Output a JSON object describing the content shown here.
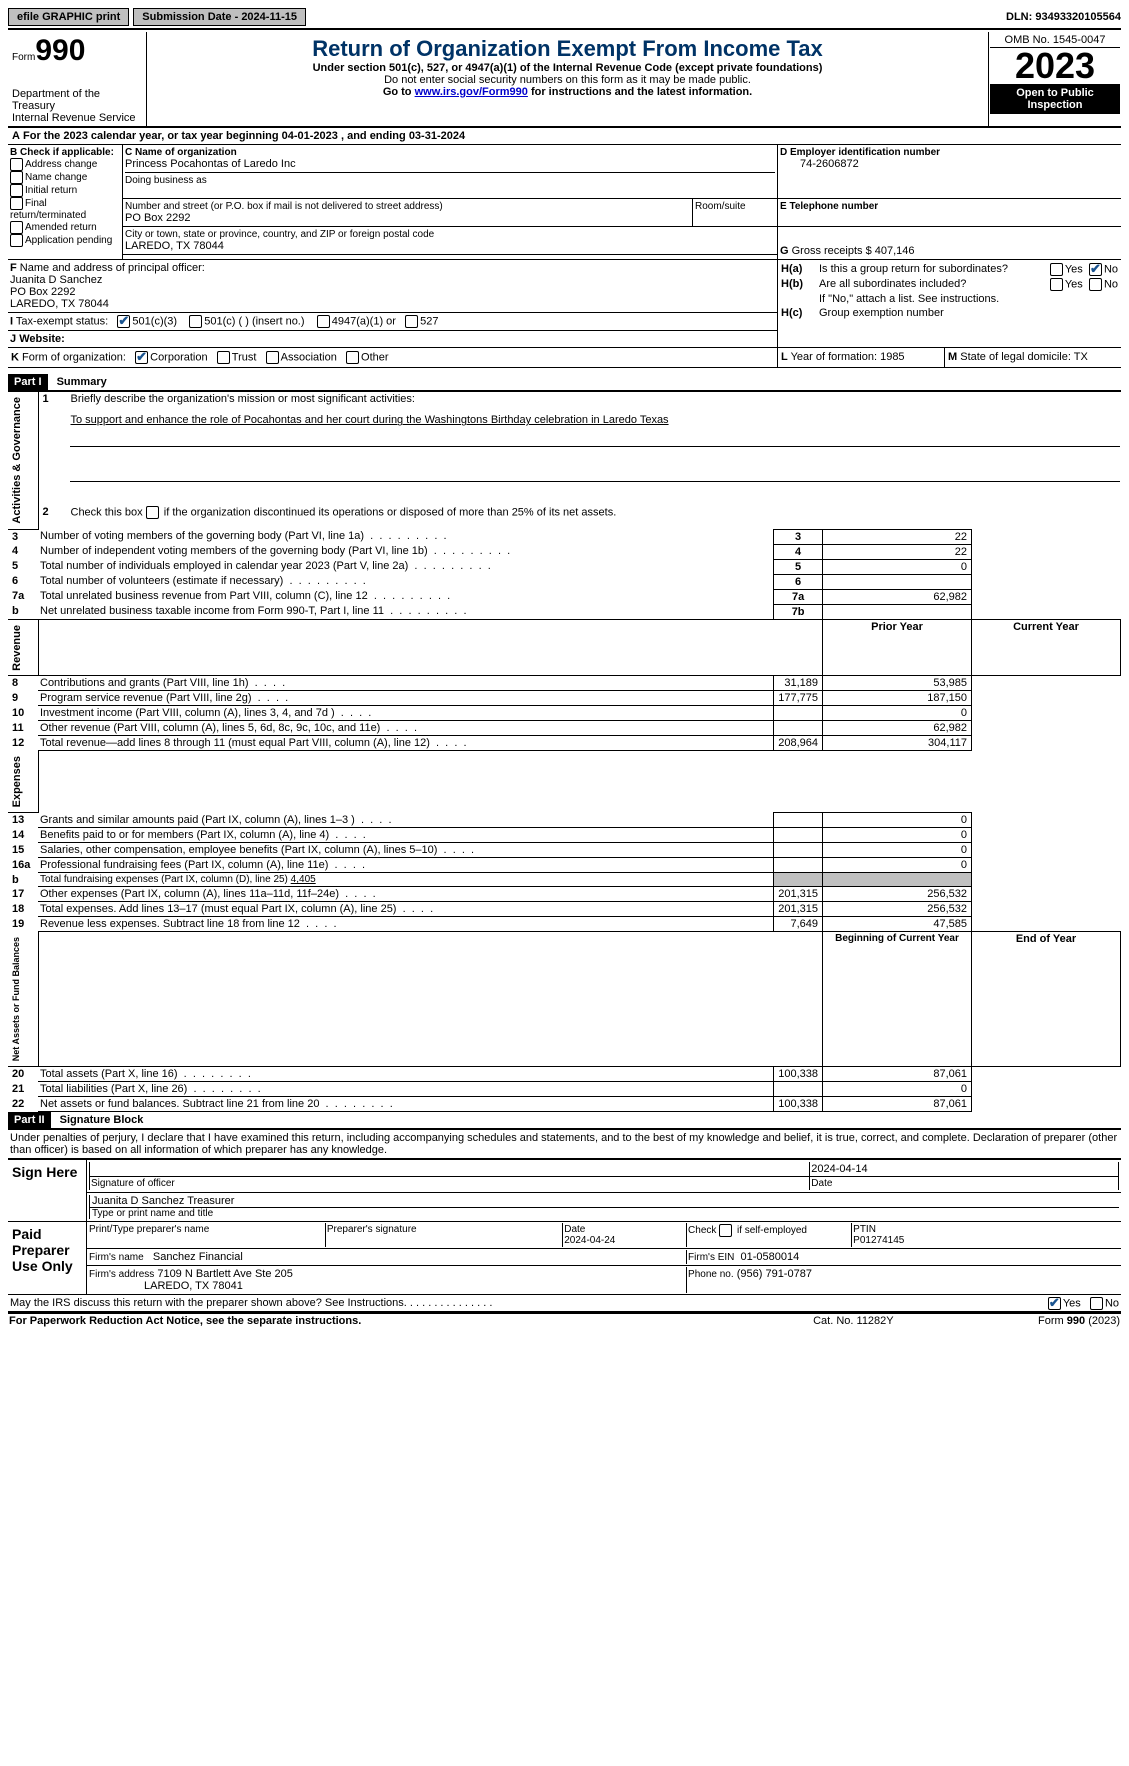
{
  "topbar": {
    "efile": "efile GRAPHIC print",
    "submission_label": "Submission Date - 2024-11-15",
    "dln_label": "DLN: 93493320105564"
  },
  "header": {
    "form_word": "Form",
    "form_num": "990",
    "title": "Return of Organization Exempt From Income Tax",
    "sub1": "Under section 501(c), 527, or 4947(a)(1) of the Internal Revenue Code (except private foundations)",
    "sub2": "Do not enter social security numbers on this form as it may be made public.",
    "sub3a": "Go to ",
    "sub3_link": "www.irs.gov/Form990",
    "sub3b": " for instructions and the latest information.",
    "dept": "Department of the Treasury",
    "irs": "Internal Revenue Service",
    "omb": "OMB No. 1545-0047",
    "year": "2023",
    "open_pub": "Open to Public Inspection"
  },
  "lineA": {
    "prefix": "A",
    "text1": "For the 2023 calendar year, or tax year beginning ",
    "begin": "04-01-2023",
    "text2": "  , and ending ",
    "end": "03-31-2024"
  },
  "boxB": {
    "title": "B Check if applicable:",
    "items": [
      "Address change",
      "Name change",
      "Initial return",
      "Final return/terminated",
      "Amended return",
      "Application pending"
    ]
  },
  "boxC": {
    "label": "C Name of organization",
    "name": "Princess Pocahontas of Laredo Inc",
    "dba_label": "Doing business as",
    "street_label": "Number and street (or P.O. box if mail is not delivered to street address)",
    "street": "PO Box 2292",
    "room_label": "Room/suite",
    "city_label": "City or town, state or province, country, and ZIP or foreign postal code",
    "city": "LAREDO, TX  78044"
  },
  "boxD": {
    "label": "D Employer identification number",
    "value": "74-2606872"
  },
  "boxE": {
    "label": "E Telephone number"
  },
  "boxG": {
    "label": "G",
    "text": "Gross receipts $ ",
    "value": "407,146"
  },
  "boxF": {
    "label": "F",
    "text": "Name and address of principal officer:",
    "name": "Juanita D Sanchez",
    "street": "PO Box 2292",
    "city": "LAREDO, TX  78044"
  },
  "boxH": {
    "a_label": "H(a)",
    "a_text": "Is this a group return for subordinates?",
    "b_label": "H(b)",
    "b_text": "Are all subordinates included?",
    "note": "If \"No,\" attach a list. See instructions.",
    "c_label": "H(c)",
    "c_text": "Group exemption number"
  },
  "boxI": {
    "label": "I",
    "text": "Tax-exempt status:",
    "o1": "501(c)(3)",
    "o2": "501(c) (  ) (insert no.)",
    "o3": "4947(a)(1) or",
    "o4": "527"
  },
  "boxJ": {
    "label": "J",
    "text": "Website:"
  },
  "boxK": {
    "label": "K",
    "text": "Form of organization:",
    "o1": "Corporation",
    "o2": "Trust",
    "o3": "Association",
    "o4": "Other"
  },
  "boxL": {
    "label": "L",
    "text": "Year of formation: ",
    "value": "1985"
  },
  "boxM": {
    "label": "M",
    "text": "State of legal domicile: ",
    "value": "TX"
  },
  "part1": {
    "hdr": "Part I",
    "title": "Summary",
    "q1_label": "1",
    "q1": "Briefly describe the organization's mission or most significant activities:",
    "q1_ans": "To support and enhance the role of Pocahontas and her court during the Washingtons Birthday celebration in Laredo Texas",
    "q2_label": "2",
    "q2": "Check this box ",
    "q2b": " if the organization discontinued its operations or disposed of more than 25% of its net assets.",
    "rows_gov": [
      {
        "n": "3",
        "t": "Number of voting members of the governing body (Part VI, line 1a)",
        "box": "3",
        "v": "22"
      },
      {
        "n": "4",
        "t": "Number of independent voting members of the governing body (Part VI, line 1b)",
        "box": "4",
        "v": "22"
      },
      {
        "n": "5",
        "t": "Total number of individuals employed in calendar year 2023 (Part V, line 2a)",
        "box": "5",
        "v": "0"
      },
      {
        "n": "6",
        "t": "Total number of volunteers (estimate if necessary)",
        "box": "6",
        "v": ""
      },
      {
        "n": "7a",
        "t": "Total unrelated business revenue from Part VIII, column (C), line 12",
        "box": "7a",
        "v": "62,982"
      },
      {
        "n": "b",
        "t": "Net unrelated business taxable income from Form 990-T, Part I, line 11",
        "box": "7b",
        "v": ""
      }
    ],
    "prior_hdr": "Prior Year",
    "curr_hdr": "Current Year",
    "rows_rev": [
      {
        "n": "8",
        "t": "Contributions and grants (Part VIII, line 1h)",
        "p": "31,189",
        "c": "53,985"
      },
      {
        "n": "9",
        "t": "Program service revenue (Part VIII, line 2g)",
        "p": "177,775",
        "c": "187,150"
      },
      {
        "n": "10",
        "t": "Investment income (Part VIII, column (A), lines 3, 4, and 7d )",
        "p": "",
        "c": "0"
      },
      {
        "n": "11",
        "t": "Other revenue (Part VIII, column (A), lines 5, 6d, 8c, 9c, 10c, and 11e)",
        "p": "",
        "c": "62,982"
      },
      {
        "n": "12",
        "t": "Total revenue—add lines 8 through 11 (must equal Part VIII, column (A), line 12)",
        "p": "208,964",
        "c": "304,117"
      }
    ],
    "rows_exp": [
      {
        "n": "13",
        "t": "Grants and similar amounts paid (Part IX, column (A), lines 1–3 )",
        "p": "",
        "c": "0"
      },
      {
        "n": "14",
        "t": "Benefits paid to or for members (Part IX, column (A), line 4)",
        "p": "",
        "c": "0"
      },
      {
        "n": "15",
        "t": "Salaries, other compensation, employee benefits (Part IX, column (A), lines 5–10)",
        "p": "",
        "c": "0"
      },
      {
        "n": "16a",
        "t": "Professional fundraising fees (Part IX, column (A), line 11e)",
        "p": "",
        "c": "0"
      },
      {
        "n": "b",
        "t": "Total fundraising expenses (Part IX, column (D), line 25) ",
        "u": "4,405",
        "shaded": true
      },
      {
        "n": "17",
        "t": "Other expenses (Part IX, column (A), lines 11a–11d, 11f–24e)",
        "p": "201,315",
        "c": "256,532"
      },
      {
        "n": "18",
        "t": "Total expenses. Add lines 13–17 (must equal Part IX, column (A), line 25)",
        "p": "201,315",
        "c": "256,532"
      },
      {
        "n": "19",
        "t": "Revenue less expenses. Subtract line 18 from line 12",
        "p": "7,649",
        "c": "47,585"
      }
    ],
    "begin_hdr": "Beginning of Current Year",
    "end_hdr": "End of Year",
    "rows_net": [
      {
        "n": "20",
        "t": "Total assets (Part X, line 16)",
        "p": "100,338",
        "c": "87,061"
      },
      {
        "n": "21",
        "t": "Total liabilities (Part X, line 26)",
        "p": "",
        "c": "0"
      },
      {
        "n": "22",
        "t": "Net assets or fund balances. Subtract line 21 from line 20",
        "p": "100,338",
        "c": "87,061"
      }
    ],
    "side_gov": "Activities & Governance",
    "side_rev": "Revenue",
    "side_exp": "Expenses",
    "side_net": "Net Assets or Fund Balances"
  },
  "part2": {
    "hdr": "Part II",
    "title": "Signature Block",
    "decl": "Under penalties of perjury, I declare that I have examined this return, including accompanying schedules and statements, and to the best of my knowledge and belief, it is true, correct, and complete. Declaration of preparer (other than officer) is based on all information of which preparer has any knowledge.",
    "sign_here": "Sign Here",
    "sig_date": "2024-04-14",
    "sig_officer_label": "Signature of officer",
    "sig_officer": "Juanita D Sanchez Treasurer",
    "type_label": "Type or print name and title",
    "date_label": "Date",
    "paid": "Paid Preparer Use Only",
    "prep_name_label": "Print/Type preparer's name",
    "prep_sig_label": "Preparer's signature",
    "prep_date": "2024-04-24",
    "check_label": "Check",
    "self_emp": "if self-employed",
    "ptin_label": "PTIN",
    "ptin": "P01274145",
    "firm_name_label": "Firm's name",
    "firm_name": "Sanchez Financial",
    "firm_ein_label": "Firm's EIN",
    "firm_ein": "01-0580014",
    "firm_addr_label": "Firm's address",
    "firm_addr1": "7109 N Bartlett Ave Ste 205",
    "firm_addr2": "LAREDO, TX  78041",
    "phone_label": "Phone no.",
    "phone": "(956) 791-0787",
    "discuss": "May the IRS discuss this return with the preparer shown above? See Instructions.",
    "yes": "Yes",
    "no": "No"
  },
  "footer": {
    "left": "For Paperwork Reduction Act Notice, see the separate instructions.",
    "mid": "Cat. No. 11282Y",
    "right": "Form 990 (2023)"
  }
}
